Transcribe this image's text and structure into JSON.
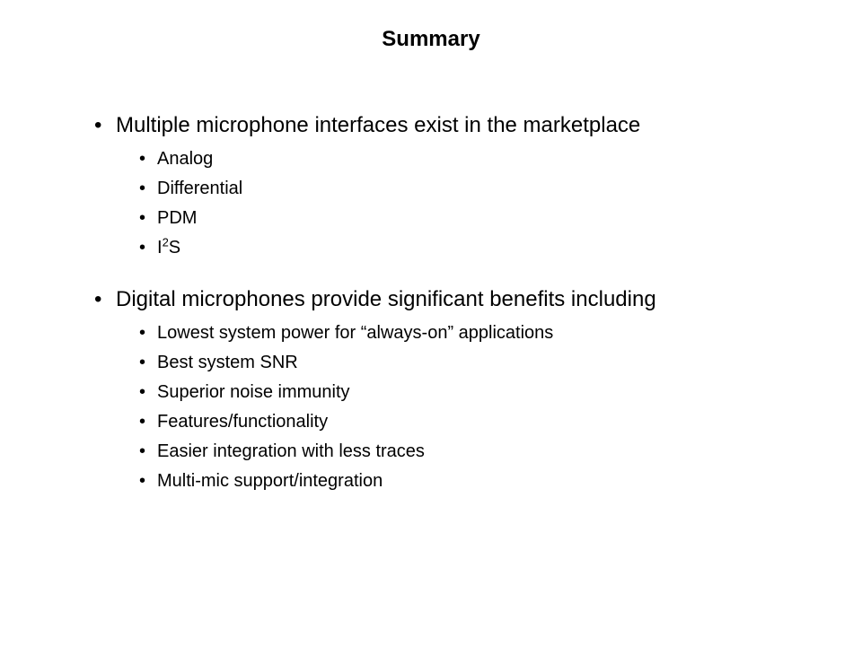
{
  "slide": {
    "title": "Summary",
    "title_fontsize": 24,
    "title_fontweight": "bold",
    "l1_fontsize": 24,
    "l2_fontsize": 20,
    "text_color": "#000000",
    "background_color": "#ffffff",
    "bullet_glyph": "•",
    "sections": [
      {
        "heading": "Multiple microphone interfaces exist in the marketplace",
        "items": [
          {
            "text": "Analog"
          },
          {
            "text": "Differential"
          },
          {
            "text": "PDM"
          },
          {
            "text_html": "I<sup>2</sup>S",
            "text_plain": "I2S"
          }
        ]
      },
      {
        "heading": "Digital microphones provide significant benefits including",
        "items": [
          {
            "text": "Lowest system power for “always-on” applications"
          },
          {
            "text": "Best system SNR"
          },
          {
            "text": "Superior noise immunity"
          },
          {
            "text": "Features/functionality"
          },
          {
            "text": "Easier integration with less traces"
          },
          {
            "text": "Multi-mic support/integration"
          }
        ]
      }
    ]
  }
}
